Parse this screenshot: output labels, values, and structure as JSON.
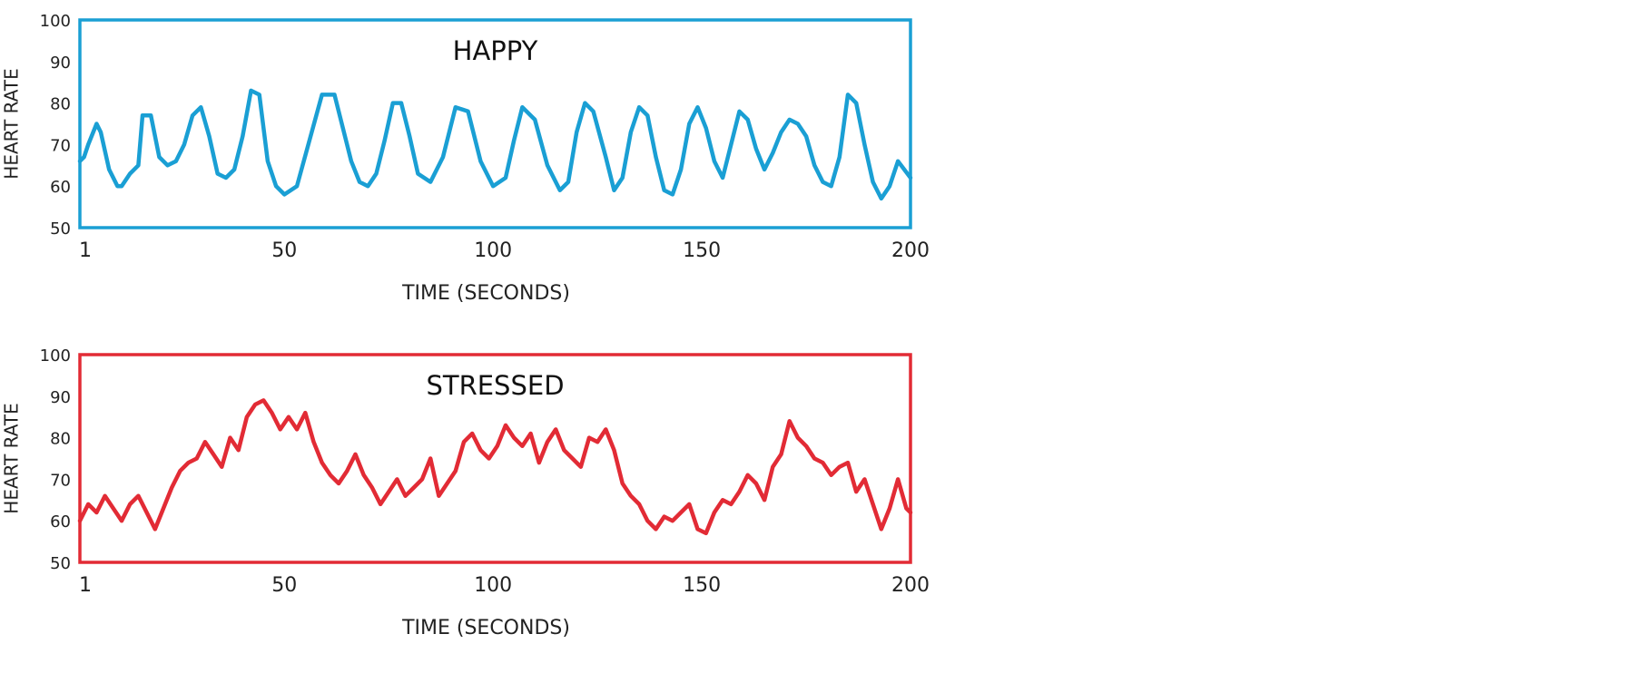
{
  "chart_data": [
    {
      "type": "line",
      "title": "HAPPY",
      "xlabel": "TIME (SECONDS)",
      "ylabel": "HEART RATE",
      "xlim": [
        1,
        200
      ],
      "ylim": [
        50,
        100
      ],
      "x_ticks": [
        "1",
        "50",
        "100",
        "150",
        "200"
      ],
      "y_ticks": [
        "50",
        "60",
        "70",
        "80",
        "90",
        "100"
      ],
      "grid": false,
      "legend": "none",
      "color": "#1a9fd4",
      "series": [
        {
          "x": [
            1,
            2,
            3,
            5,
            6,
            8,
            10,
            11,
            13,
            15,
            16,
            18,
            20,
            22,
            24,
            26,
            28,
            30,
            32,
            34,
            36,
            38,
            40,
            42,
            44,
            46,
            48,
            50,
            53,
            56,
            59,
            62,
            64,
            66,
            68,
            70,
            72,
            74,
            76,
            78,
            80,
            82,
            85,
            88,
            91,
            94,
            97,
            100,
            103,
            105,
            107,
            110,
            113,
            116,
            118,
            120,
            122,
            124,
            127,
            129,
            131,
            133,
            135,
            137,
            139,
            141,
            143,
            145,
            147,
            149,
            151,
            153,
            155,
            157,
            159,
            161,
            163,
            165,
            167,
            169,
            171,
            173,
            175,
            177,
            179,
            181,
            183,
            185,
            187,
            189,
            191,
            193,
            195,
            197,
            200
          ],
          "y": [
            66,
            67,
            70,
            75,
            73,
            64,
            60,
            60,
            63,
            65,
            77,
            77,
            67,
            65,
            66,
            70,
            77,
            79,
            72,
            63,
            62,
            64,
            72,
            83,
            82,
            66,
            60,
            58,
            60,
            71,
            82,
            82,
            74,
            66,
            61,
            60,
            63,
            71,
            80,
            80,
            72,
            63,
            61,
            67,
            79,
            78,
            66,
            60,
            62,
            71,
            79,
            76,
            65,
            59,
            61,
            73,
            80,
            78,
            67,
            59,
            62,
            73,
            79,
            77,
            67,
            59,
            58,
            64,
            75,
            79,
            74,
            66,
            62,
            70,
            78,
            76,
            69,
            64,
            68,
            73,
            76,
            75,
            72,
            65,
            61,
            60,
            67,
            82,
            80,
            70,
            61,
            57,
            60,
            66,
            62
          ]
        }
      ]
    },
    {
      "type": "line",
      "title": "STRESSED",
      "xlabel": "TIME (SECONDS)",
      "ylabel": "HEART RATE",
      "xlim": [
        1,
        200
      ],
      "ylim": [
        50,
        100
      ],
      "x_ticks": [
        "1",
        "50",
        "100",
        "150",
        "200"
      ],
      "y_ticks": [
        "50",
        "60",
        "70",
        "80",
        "90",
        "100"
      ],
      "grid": false,
      "legend": "none",
      "color": "#e22b35",
      "series": [
        {
          "x": [
            1,
            3,
            5,
            7,
            9,
            11,
            13,
            15,
            17,
            19,
            21,
            23,
            25,
            27,
            29,
            31,
            33,
            35,
            37,
            39,
            41,
            43,
            45,
            47,
            49,
            51,
            53,
            55,
            57,
            59,
            61,
            63,
            65,
            67,
            69,
            71,
            73,
            75,
            77,
            79,
            81,
            83,
            85,
            87,
            89,
            91,
            93,
            95,
            97,
            99,
            101,
            103,
            105,
            107,
            109,
            111,
            113,
            115,
            117,
            119,
            121,
            123,
            125,
            127,
            129,
            131,
            133,
            135,
            137,
            139,
            141,
            143,
            145,
            147,
            149,
            151,
            153,
            155,
            157,
            159,
            161,
            163,
            165,
            167,
            169,
            171,
            173,
            175,
            177,
            179,
            181,
            183,
            185,
            187,
            189,
            191,
            193,
            195,
            197,
            199,
            200
          ],
          "y": [
            60,
            64,
            62,
            66,
            63,
            60,
            64,
            66,
            62,
            58,
            63,
            68,
            72,
            74,
            75,
            79,
            76,
            73,
            80,
            77,
            85,
            88,
            89,
            86,
            82,
            85,
            82,
            86,
            79,
            74,
            71,
            69,
            72,
            76,
            71,
            68,
            64,
            67,
            70,
            66,
            68,
            70,
            75,
            66,
            69,
            72,
            79,
            81,
            77,
            75,
            78,
            83,
            80,
            78,
            81,
            74,
            79,
            82,
            77,
            75,
            73,
            80,
            79,
            82,
            77,
            69,
            66,
            64,
            60,
            58,
            61,
            60,
            62,
            64,
            58,
            57,
            62,
            65,
            64,
            67,
            71,
            69,
            65,
            73,
            76,
            84,
            80,
            78,
            75,
            74,
            71,
            73,
            74,
            67,
            70,
            64,
            58,
            63,
            70,
            63,
            62
          ]
        }
      ]
    }
  ]
}
